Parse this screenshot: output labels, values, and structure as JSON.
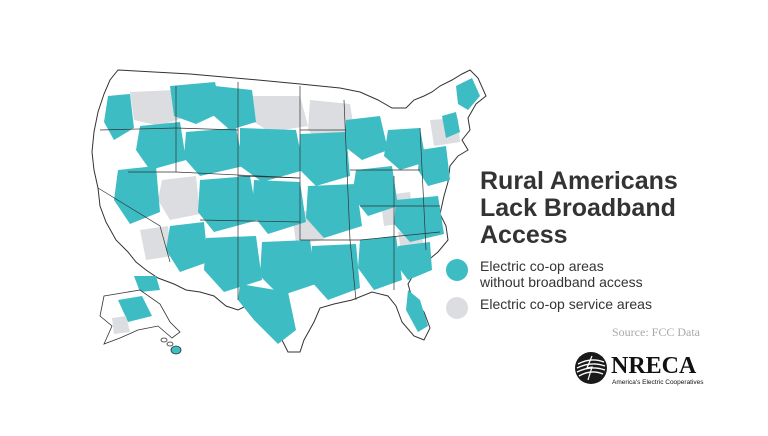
{
  "colors": {
    "coop_no_broadband": "#3dbcc4",
    "coop_service": "#dcdde0",
    "state_lines": "#333333",
    "title_text": "#333333",
    "source_text": "#a9a9a9"
  },
  "title": {
    "line1": "Rural Americans",
    "line2": "Lack Broadband",
    "line3": "Access"
  },
  "legend": [
    {
      "line1": "Electric co-op areas",
      "line2": "without broadband access",
      "icon": "teal-dot",
      "color": "#3dbcc4"
    },
    {
      "line1": "Electric co-op service areas",
      "icon": "gray-dot",
      "color": "#dcdde0"
    }
  ],
  "source": "Source: FCC Data",
  "logo": {
    "wordmark": "NRECA",
    "tagline": "America's Electric Cooperatives",
    "icon": "nreca-globe-icon"
  }
}
